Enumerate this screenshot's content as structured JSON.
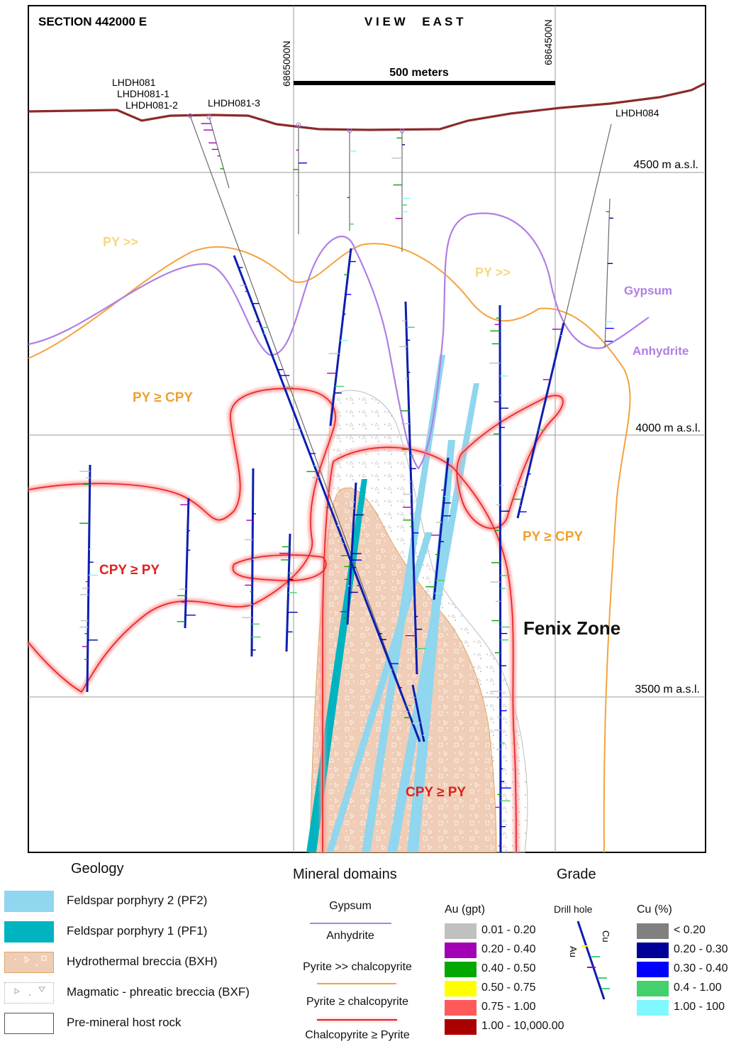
{
  "header": {
    "section": "SECTION 442000 E",
    "view": "V I E W     E A S T",
    "north_left": "6865000N",
    "north_right": "6864500N",
    "scale": "500 meters"
  },
  "elevations": [
    "4500 m a.s.l.",
    "4000 m a.s.l.",
    "3500 m a.s.l."
  ],
  "holes": [
    "LHDH081",
    "LHDH081-1",
    "LHDH081-2",
    "LHDH081-3",
    "LHDH084"
  ],
  "labels": {
    "py_much_left": "PY >>",
    "py_much_right": "PY >>",
    "gypsum": "Gypsum",
    "anhydrite": "Anhydrite",
    "py_ge_cpy_left": "PY ≥ CPY",
    "py_ge_cpy_right": "PY ≥ CPY",
    "cpy_ge_py_left": "CPY ≥ PY",
    "cpy_ge_py_bottom": "CPY ≥ PY",
    "zone": "Fenix Zone"
  },
  "legend": {
    "geology_title": "Geology",
    "geology": [
      {
        "label": "Feldspar porphyry 2 (PF2)",
        "color": "#8fd6ee"
      },
      {
        "label": "Feldspar porphyry 1 (PF1)",
        "color": "#00b3c0"
      },
      {
        "label": "Hydrothermal breccia (BXH)",
        "color": "#efcdb4"
      },
      {
        "label": "Magmatic - phreatic breccia (BXF)",
        "color": "#ffffff"
      },
      {
        "label": "Pre-mineral host rock",
        "color": "#ffffff"
      }
    ],
    "domains_title": "Mineral domains",
    "domains": {
      "gypsum": "Gypsum",
      "anhydrite": "Anhydrite",
      "py_cpy": "Pyrite >> chalcopyrite",
      "py_ge_cpy": "Pyrite ≥ chalcopyrite",
      "cpy_ge_py": "Chalcopyrite ≥ Pyrite"
    },
    "grade_title": "Grade",
    "au_title": "Au (gpt)",
    "au": [
      {
        "label": "0.01 - 0.20",
        "color": "#c0c0c0"
      },
      {
        "label": "0.20 - 0.40",
        "color": "#a200b4"
      },
      {
        "label": "0.40 - 0.50",
        "color": "#00a800"
      },
      {
        "label": "0.50 - 0.75",
        "color": "#ffff00"
      },
      {
        "label": "0.75 - 1.00",
        "color": "#ff5a5a"
      },
      {
        "label": "1.00 - 10,000.00",
        "color": "#aa0000"
      }
    ],
    "drill_hole": "Drill hole",
    "drill_au": "Au",
    "drill_cu": "Cu",
    "cu_title": "Cu (%)",
    "cu": [
      {
        "label": "< 0.20",
        "color": "#808080"
      },
      {
        "label": "0.20 - 0.30",
        "color": "#000099"
      },
      {
        "label": "0.30 - 0.40",
        "color": "#0000ff"
      },
      {
        "label": "0.4 - 1.00",
        "color": "#44d06a"
      },
      {
        "label": "1.00 - 100",
        "color": "#7ff8ff"
      }
    ]
  }
}
